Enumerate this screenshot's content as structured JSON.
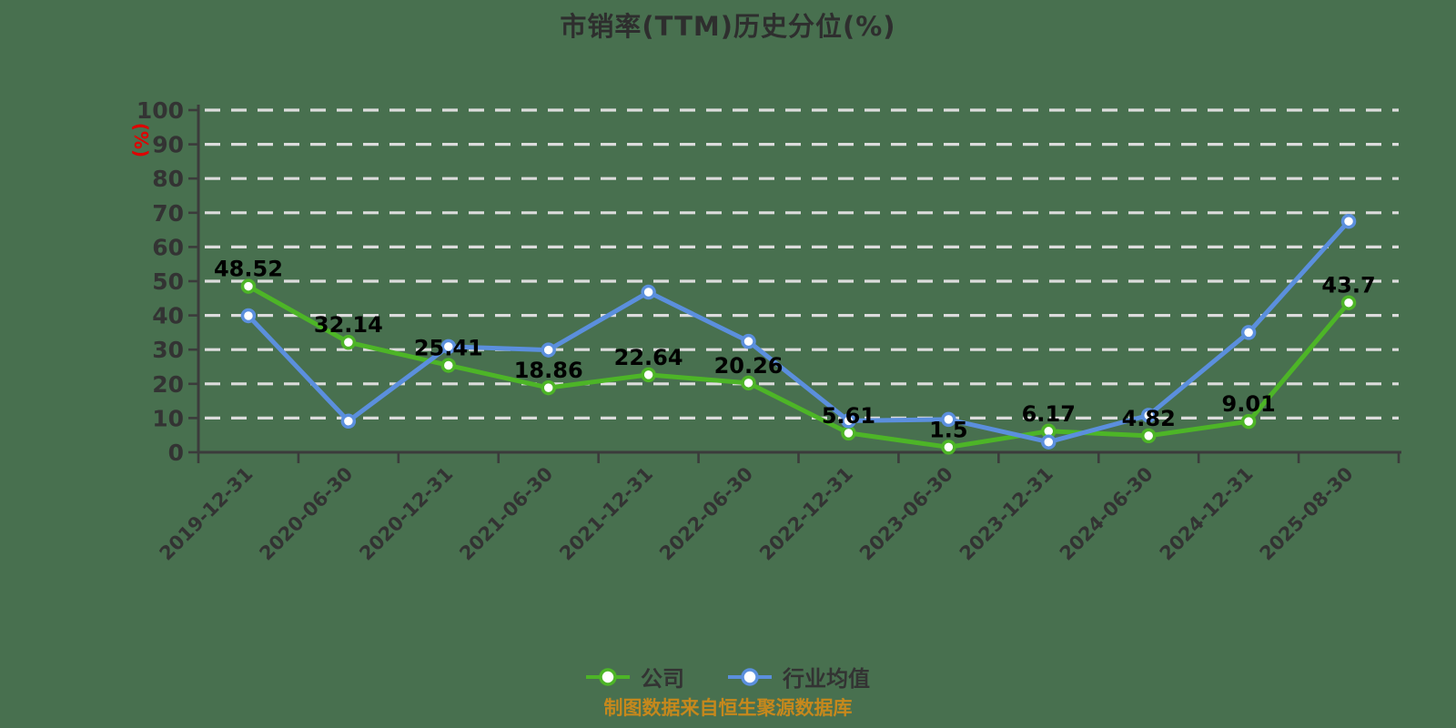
{
  "title": "市销率(TTM)历史分位(%)",
  "y_axis_unit": "(%)",
  "footer_note": "制图数据来自恒生聚源数据库",
  "colors": {
    "background": "#48704f",
    "company": "#4db527",
    "industry": "#5b8fdd",
    "grid": "#dcdcdc",
    "axis": "#3b3b3b",
    "tick_label": "#333333",
    "value_label": "#000000",
    "title": "#2e2e2e",
    "unit": "#e00000",
    "footer": "#c6881c",
    "marker_fill": "#ffffff"
  },
  "chart_data": {
    "type": "line",
    "title": "市销率(TTM)历史分位(%)",
    "ylabel": "(%)",
    "xlabel": "",
    "ylim": [
      0,
      100
    ],
    "ytick_step": 10,
    "grid": "horizontal-dashed",
    "legend_position": "bottom",
    "categories": [
      "2019-12-31",
      "2020-06-30",
      "2020-12-31",
      "2021-06-30",
      "2021-12-31",
      "2022-06-30",
      "2022-12-31",
      "2023-06-30",
      "2023-12-31",
      "2024-06-30",
      "2024-12-31",
      "2025-08-30"
    ],
    "series": [
      {
        "name": "公司",
        "key": "company",
        "color_key": "company",
        "point_labels_visible": true,
        "values": [
          48.52,
          32.14,
          25.41,
          18.86,
          22.64,
          20.26,
          5.61,
          1.5,
          6.17,
          4.82,
          9.01,
          43.7
        ]
      },
      {
        "name": "行业均值",
        "key": "industry",
        "color_key": "industry",
        "point_labels_visible": false,
        "values": [
          39.9,
          9.1,
          30.9,
          29.9,
          46.8,
          32.4,
          9.2,
          9.6,
          3.0,
          10.8,
          35.0,
          67.5
        ]
      }
    ]
  }
}
